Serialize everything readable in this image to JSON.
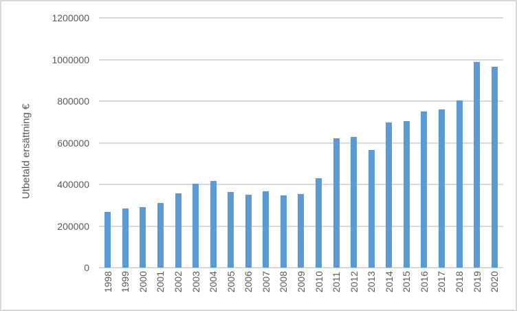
{
  "chart_data": {
    "type": "bar",
    "title": "",
    "xlabel": "",
    "ylabel": "Utbetald ersättning €",
    "categories": [
      "1998",
      "1999",
      "2000",
      "2001",
      "2002",
      "2003",
      "2004",
      "2005",
      "2006",
      "2007",
      "2008",
      "2009",
      "2010",
      "2011",
      "2012",
      "2013",
      "2014",
      "2015",
      "2016",
      "2017",
      "2018",
      "2019",
      "2020"
    ],
    "values": [
      268000,
      283000,
      292000,
      311000,
      356000,
      404000,
      416000,
      365000,
      349000,
      368000,
      347000,
      355000,
      429000,
      620000,
      628000,
      565000,
      699000,
      703000,
      749000,
      761000,
      805000,
      989000,
      966000
    ],
    "ylim": [
      0,
      1200000
    ],
    "ytick_step": 200000,
    "ytick_labels": [
      "0",
      "200000",
      "400000",
      "600000",
      "800000",
      "1000000",
      "1200000"
    ],
    "grid": "horizontal",
    "legend_position": "none",
    "colors": {
      "bar": "#5B9BD5",
      "gridline": "#D9D9D9",
      "axis_text": "#595959",
      "frame_border": "#D9D9D9",
      "background": "#FFFFFF"
    }
  }
}
